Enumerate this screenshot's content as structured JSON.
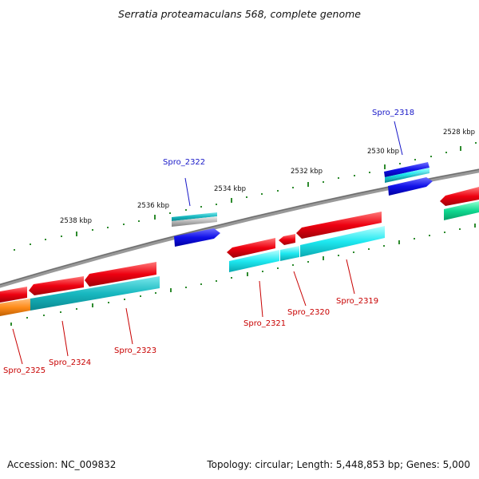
{
  "title": "Serratia proteamaculans 568, complete genome",
  "footer": {
    "accession": "Accession: NC_009832",
    "topology": "Topology: circular; Length: 5,448,853 bp; Genes: 5,000"
  },
  "tick_labels": [
    "2538 kbp",
    "2536 kbp",
    "2534 kbp",
    "2532 kbp",
    "2530 kbp",
    "2528 kbp"
  ],
  "gene_labels": [
    "Spro_2322",
    "Spro_2318",
    "Spro_2325",
    "Spro_2324",
    "Spro_2323",
    "Spro_2321",
    "Spro_2320",
    "Spro_2319"
  ],
  "colors": {
    "backbone": "#8c8c8c",
    "tick": "#2e8b2e",
    "gene_red": "#e8001c",
    "gene_cyan": "#1ee0e8",
    "gene_teal": "#18b8c0",
    "gene_orange": "#ff8c1a",
    "gene_blue": "#1010e0",
    "gene_green": "#10d890",
    "label_blue": "#1818c8",
    "label_red": "#c80000"
  }
}
